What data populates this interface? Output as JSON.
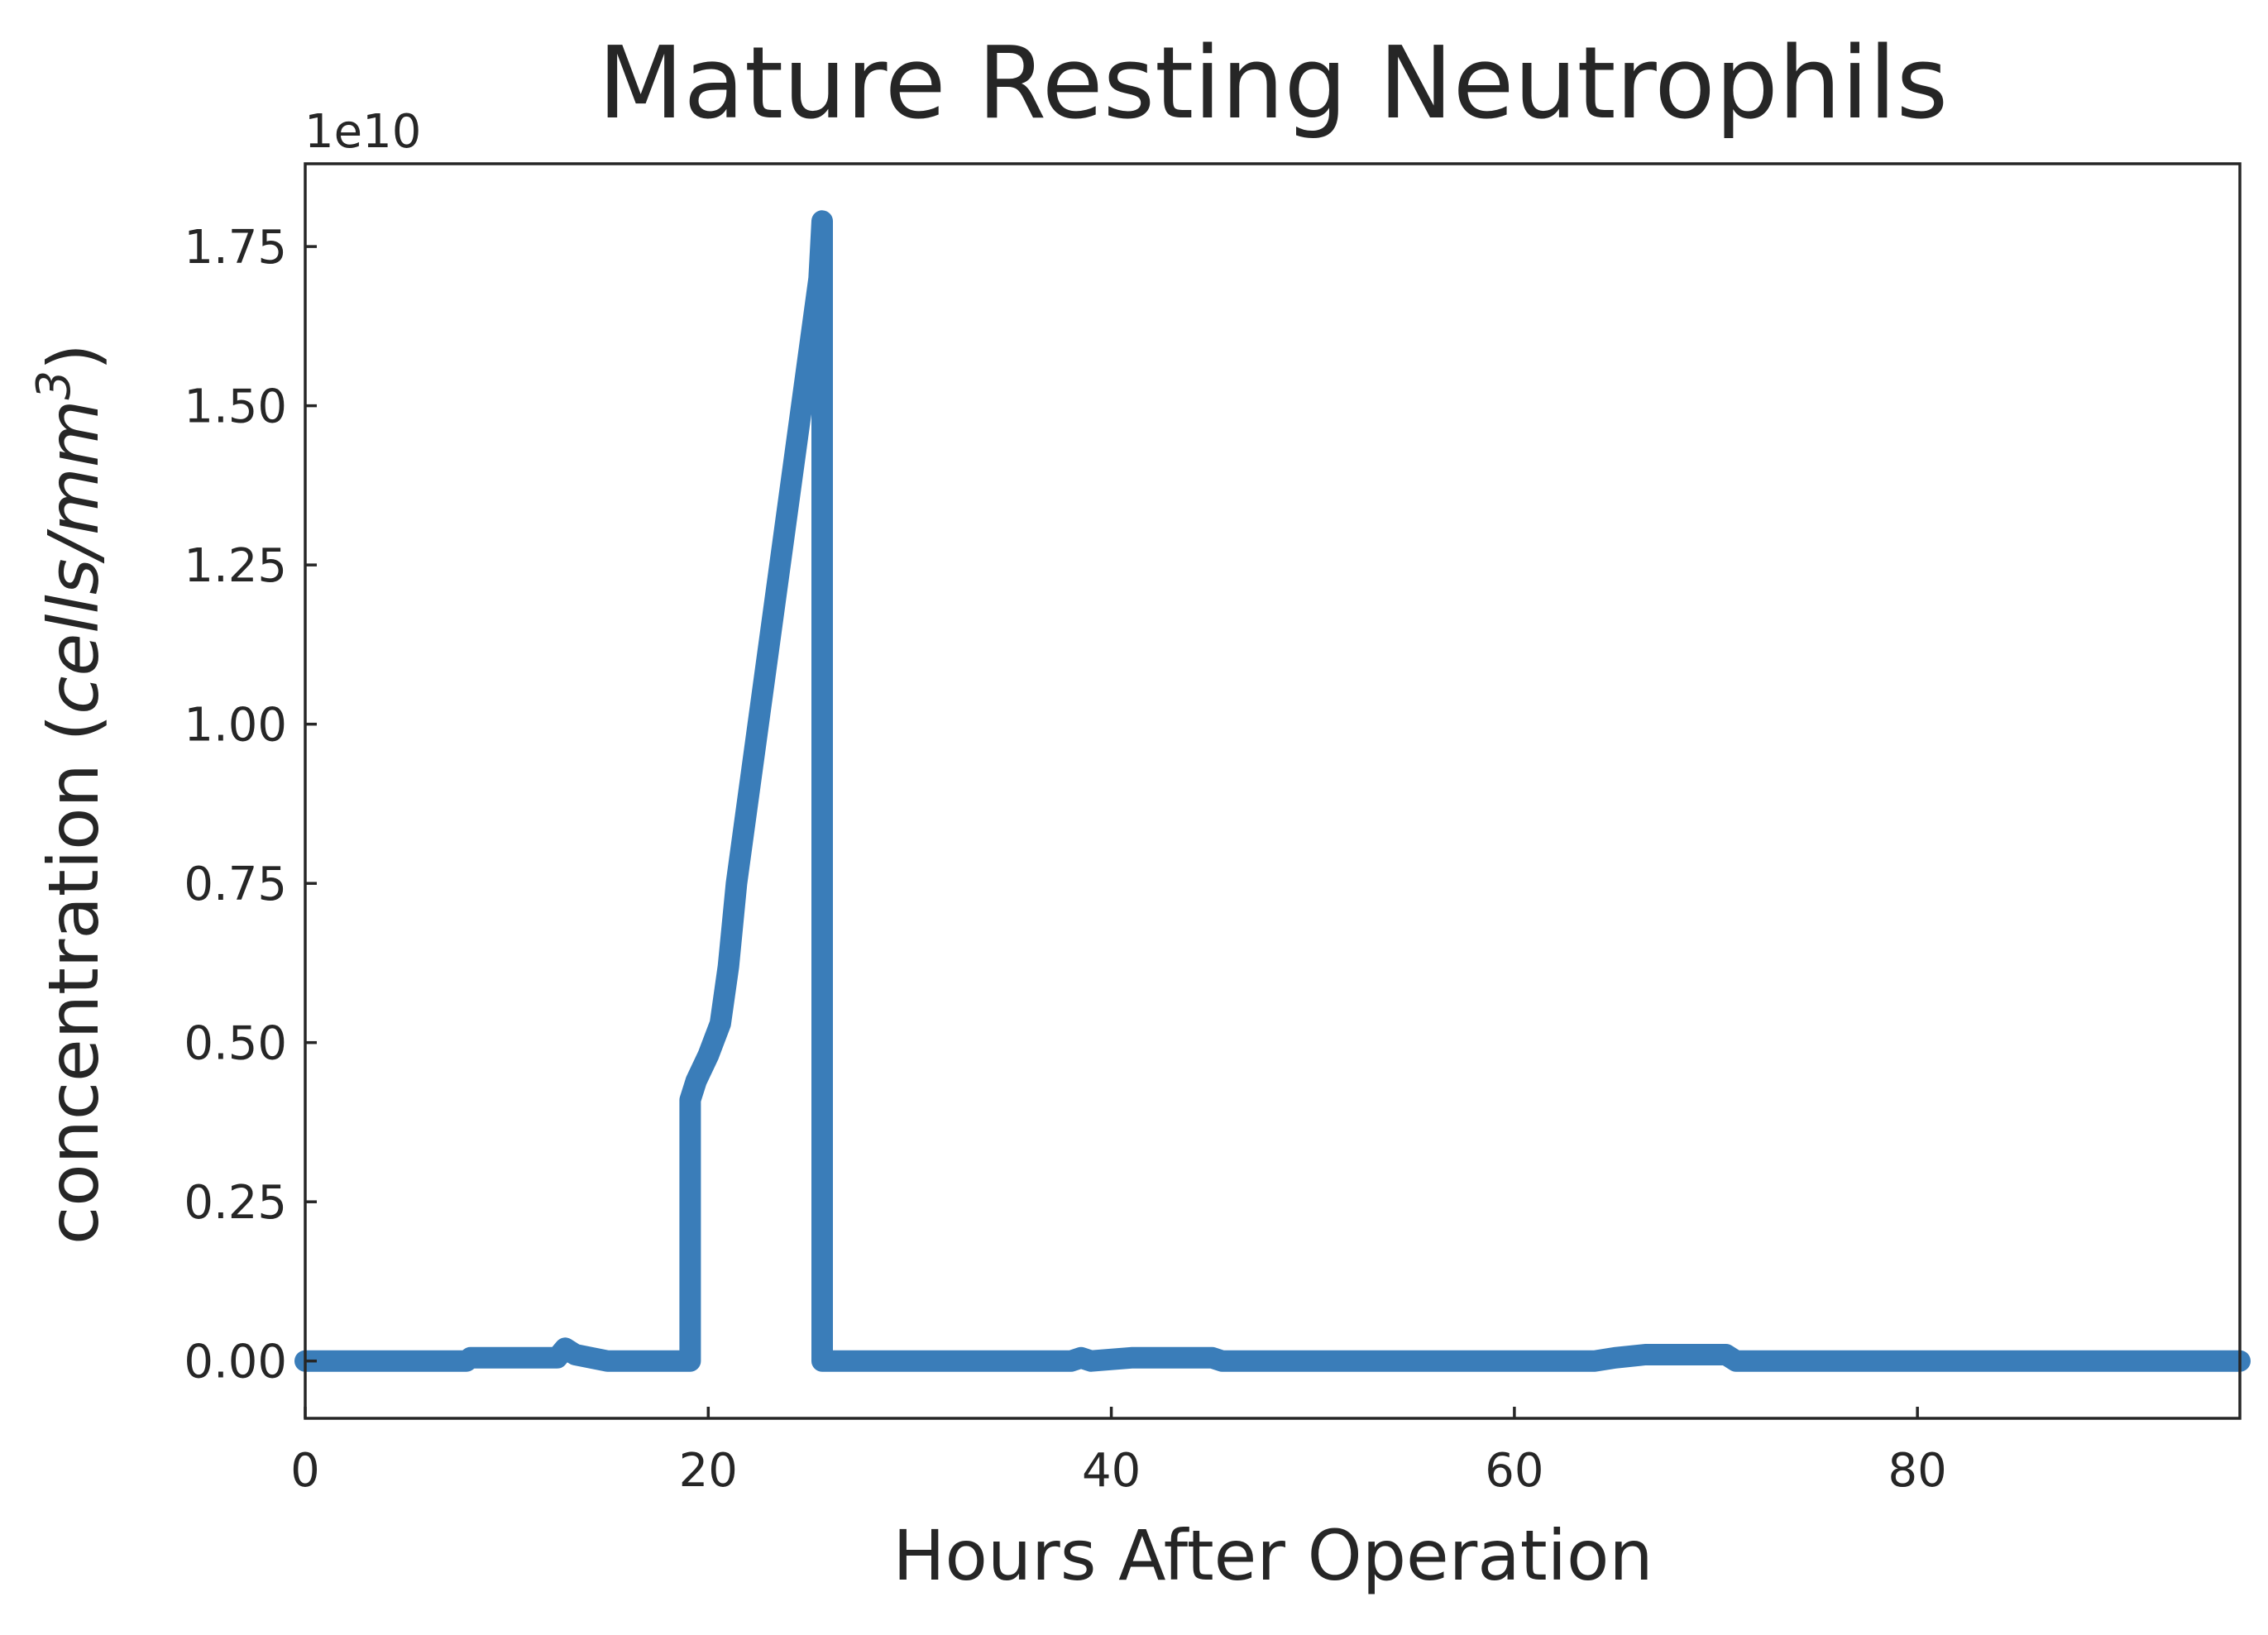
{
  "chart_data": {
    "type": "line",
    "title": "Mature Resting Neutrophils",
    "xlabel": "Hours After Operation",
    "ylabel": {
      "prefix": "concentration (",
      "italic": "cells/mm",
      "superscript": "3",
      "suffix": ")"
    },
    "y_offset_text": "1e10",
    "y_scale": 10000000000,
    "xlim": [
      0,
      96
    ],
    "ylim": [
      -0.09,
      1.88
    ],
    "x_ticks": [
      0,
      20,
      40,
      60,
      80
    ],
    "x_tick_labels": [
      "0",
      "20",
      "40",
      "60",
      "80"
    ],
    "y_ticks": [
      0,
      0.25,
      0.5,
      0.75,
      1.0,
      1.25,
      1.5,
      1.75
    ],
    "y_tick_labels": [
      "0.00",
      "0.25",
      "0.50",
      "0.75",
      "1.00",
      "1.25",
      "1.50",
      "1.75"
    ],
    "grid": false,
    "color": "#3a7db9",
    "series": [
      {
        "x": [
          0,
          8,
          8.2,
          12.5,
          12.9,
          13.4,
          15,
          19.1,
          19.1,
          19.4,
          20,
          20.6,
          21,
          21.4,
          25.5,
          25.65,
          25.65,
          30,
          38,
          38.5,
          39,
          41,
          45,
          45.5,
          64,
          65,
          66.5,
          70.5,
          71,
          84,
          96
        ],
        "y": [
          0,
          0,
          0.005,
          0.005,
          0.02,
          0.01,
          0,
          0,
          0.41,
          0.44,
          0.48,
          0.53,
          0.62,
          0.75,
          1.7,
          1.79,
          0,
          0,
          0,
          0.005,
          0,
          0.005,
          0.005,
          0,
          0,
          0.005,
          0.01,
          0.01,
          0,
          0,
          0
        ]
      }
    ]
  }
}
